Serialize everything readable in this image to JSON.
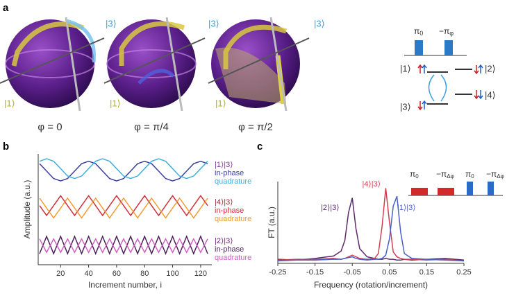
{
  "panel_a": {
    "label": "a",
    "spheres": [
      {
        "top": "|3⟩",
        "left": "|1⟩",
        "caption": "φ = 0"
      },
      {
        "top": "|3⟩",
        "left": "|1⟩",
        "caption": "φ = π/4"
      },
      {
        "top": "|3⟩",
        "left": "|1⟩",
        "caption": "φ = π/2"
      }
    ],
    "level_diagram": {
      "pulses": [
        {
          "main": "π",
          "sub": "0"
        },
        {
          "main": "−π",
          "sub": "φ"
        }
      ],
      "states": [
        "|1⟩",
        "|2⟩",
        "|3⟩",
        "|4⟩"
      ]
    }
  },
  "chart_data": [
    {
      "type": "line",
      "label": "b",
      "xlabel": "Increment number, i",
      "ylabel": "Amplitude (a.u.)",
      "x": [
        5,
        10,
        15,
        20,
        25,
        30,
        35,
        40,
        45,
        50,
        55,
        60,
        65,
        70,
        75,
        80,
        85,
        90,
        95,
        100,
        105,
        110,
        115,
        120,
        125
      ],
      "xlim": [
        4,
        128
      ],
      "xticks": [
        20,
        40,
        60,
        80,
        100,
        120
      ],
      "ylim": [
        0,
        9
      ],
      "groups": [
        {
          "name": "|1⟩|3⟩",
          "color": "#7a3a8a",
          "series": [
            {
              "name": "in-phase",
              "color": "#3a3f9a",
              "values": [
                8.2,
                7.6,
                7.0,
                6.8,
                7.0,
                7.6,
                8.2,
                8.4,
                8.2,
                7.6,
                7.0,
                6.8,
                7.0,
                7.6,
                8.2,
                8.4,
                8.2,
                7.6,
                7.0,
                6.8,
                7.0,
                7.6,
                8.2,
                8.4,
                8.2
              ]
            },
            {
              "name": "quadrature",
              "color": "#3fb0e0",
              "values": [
                8.4,
                8.6,
                8.4,
                7.8,
                7.2,
                7.0,
                7.2,
                7.8,
                8.4,
                8.6,
                8.4,
                7.8,
                7.2,
                7.0,
                7.2,
                7.8,
                8.4,
                8.6,
                8.4,
                7.8,
                7.2,
                7.0,
                7.2,
                7.8,
                8.4
              ]
            }
          ]
        },
        {
          "name": "|4⟩|3⟩",
          "color": "#a02a3a",
          "series": [
            {
              "name": "in-phase",
              "color": "#d0303a",
              "values": [
                4.8,
                4.0,
                4.8,
                5.6,
                4.8,
                4.0,
                4.8,
                5.6,
                4.8,
                4.0,
                4.8,
                5.6,
                4.8,
                4.0,
                4.8,
                5.6,
                4.8,
                4.0,
                4.8,
                5.6,
                4.8,
                4.0,
                4.8,
                5.6,
                4.8
              ]
            },
            {
              "name": "quadrature",
              "color": "#f39a30",
              "values": [
                5.4,
                4.6,
                3.8,
                4.6,
                5.4,
                4.6,
                3.8,
                4.6,
                5.4,
                4.6,
                3.8,
                4.6,
                5.4,
                4.6,
                3.8,
                4.6,
                5.4,
                4.6,
                3.8,
                4.6,
                5.4,
                4.6,
                3.8,
                4.6,
                5.4
              ]
            }
          ]
        },
        {
          "name": "|2⟩|3⟩",
          "color": "#6a2a7a",
          "series": [
            {
              "name": "in-phase",
              "color": "#4a1f5a",
              "values": [
                0.9,
                2.3,
                0.9,
                2.3,
                0.9,
                2.3,
                0.9,
                2.3,
                0.9,
                2.3,
                0.9,
                2.3,
                0.9,
                2.3,
                0.9,
                2.3,
                0.9,
                2.3,
                0.9,
                2.3,
                0.9,
                2.3,
                0.9,
                2.3,
                0.9
              ]
            },
            {
              "name": "quadrature",
              "color": "#d060c0",
              "values": [
                2.1,
                1.0,
                2.1,
                1.0,
                2.1,
                1.0,
                2.1,
                1.0,
                2.1,
                1.0,
                2.1,
                1.0,
                2.1,
                1.0,
                2.1,
                1.0,
                2.1,
                1.0,
                2.1,
                1.0,
                2.1,
                1.0,
                2.1,
                1.0,
                2.1
              ]
            }
          ]
        }
      ]
    },
    {
      "type": "line",
      "label": "c",
      "xlabel": "Frequency (rotation/increment)",
      "ylabel": "FT (a.u.)",
      "x": [
        -0.25,
        -0.2,
        -0.15,
        -0.1,
        -0.08,
        -0.07,
        -0.06,
        -0.05,
        -0.04,
        -0.03,
        -0.01,
        0.01,
        0.02,
        0.03,
        0.04,
        0.05,
        0.06,
        0.07,
        0.08,
        0.09,
        0.11,
        0.15,
        0.2,
        0.25
      ],
      "xlim": [
        -0.25,
        0.25
      ],
      "xticks": [
        -0.25,
        -0.15,
        -0.05,
        0.05,
        0.15,
        0.25
      ],
      "ylim": [
        0,
        1
      ],
      "series": [
        {
          "name": "|2⟩|3⟩",
          "color": "#5a2a6a",
          "values": [
            0.05,
            0.04,
            0.06,
            0.09,
            0.15,
            0.28,
            0.62,
            0.8,
            0.42,
            0.18,
            0.08,
            0.06,
            0.05,
            0.05,
            0.06,
            0.05,
            0.05,
            0.04,
            0.04,
            0.05,
            0.04,
            0.05,
            0.06,
            0.04
          ]
        },
        {
          "name": "|4⟩|3⟩",
          "color": "#d04050",
          "values": [
            0.04,
            0.05,
            0.05,
            0.06,
            0.05,
            0.06,
            0.08,
            0.1,
            0.08,
            0.06,
            0.05,
            0.06,
            0.12,
            0.45,
            0.92,
            0.5,
            0.14,
            0.08,
            0.06,
            0.05,
            0.05,
            0.04,
            0.05,
            0.03
          ]
        },
        {
          "name": "|1⟩|3⟩",
          "color": "#4a5fc8",
          "values": [
            0.03,
            0.04,
            0.04,
            0.05,
            0.05,
            0.06,
            0.07,
            0.08,
            0.06,
            0.05,
            0.04,
            0.05,
            0.05,
            0.06,
            0.1,
            0.3,
            0.7,
            0.82,
            0.38,
            0.12,
            0.06,
            0.05,
            0.04,
            0.03
          ]
        }
      ],
      "inset_pulses": [
        {
          "main": "π",
          "sub": "0",
          "color": "#d02a2a"
        },
        {
          "main": "−π",
          "sub": "Δφ",
          "color": "#d02a2a"
        },
        {
          "main": "π",
          "sub": "0",
          "color": "#2a6ac8"
        },
        {
          "main": "−π",
          "sub": "Δφ",
          "color": "#2a6ac8"
        }
      ]
    }
  ]
}
